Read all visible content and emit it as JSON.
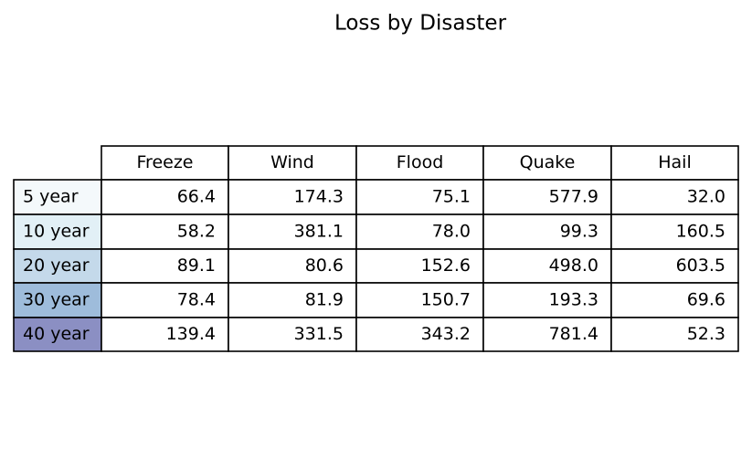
{
  "title": "Loss by Disaster",
  "table": {
    "columns": [
      "Freeze",
      "Wind",
      "Flood",
      "Quake",
      "Hail"
    ],
    "row_labels": [
      "5 year",
      "10 year",
      "20 year",
      "30 year",
      "40 year"
    ],
    "row_colors": [
      "#f4f9fb",
      "#e2f0f6",
      "#c4d9ea",
      "#9ebcdb",
      "#8b8fc3"
    ],
    "rows": [
      [
        "66.4",
        "174.3",
        "75.1",
        "577.9",
        "32.0"
      ],
      [
        "58.2",
        "381.1",
        "78.0",
        "99.3",
        "160.5"
      ],
      [
        "89.1",
        "80.6",
        "152.6",
        "498.0",
        "603.5"
      ],
      [
        "78.4",
        "81.9",
        "150.7",
        "193.3",
        "69.6"
      ],
      [
        "139.4",
        "331.5",
        "343.2",
        "781.4",
        "52.3"
      ]
    ]
  }
}
